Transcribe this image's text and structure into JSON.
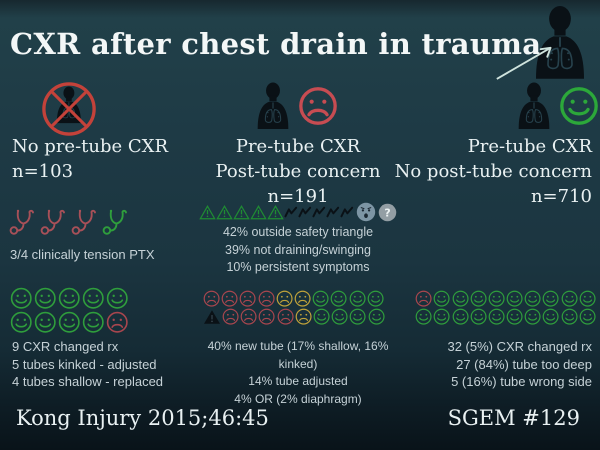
{
  "title": "CXR after chest drain in trauma",
  "colors": {
    "bg_top": "#214049",
    "bg_bottom": "#0a161d",
    "text": "#ebf2f3",
    "stat_text": "#c6d2d7",
    "red": "#c4423a",
    "red_bright": "#c74c52",
    "red_face": "#a8464e",
    "red_steth": "#a85058",
    "yellow": "#bfa23a",
    "green": "#2f9e3c",
    "green_bright": "#2ca83a",
    "green_dark": "#1f8c33",
    "dark": "#0a1116",
    "grey_face": "#7d95a4",
    "grey_q": "#939ea4",
    "arrow": "#cfe3dd"
  },
  "hero": {
    "icons": [
      "body"
    ],
    "arrow": [
      "arrow"
    ]
  },
  "columns": [
    {
      "header_icons": [
        "body-crossed"
      ],
      "header_lines": [
        "No pre-tube CXR"
      ],
      "n": "n=103",
      "mid_icons": [
        "steth-red",
        "steth-red",
        "steth-red",
        "steth-green"
      ],
      "mid_caption": "3/4 clinically tension PTX",
      "faces": [
        [
          "smile-green",
          "smile-green",
          "smile-green",
          "smile-green",
          "smile-green"
        ],
        [
          "smile-green",
          "smile-green",
          "smile-green",
          "smile-green",
          "frown-red"
        ]
      ],
      "stats": [
        "9 CXR changed rx",
        "5 tubes kinked - adjusted",
        "4 tubes shallow - replaced"
      ]
    },
    {
      "header_icons": [
        "body",
        "frown-circle-red"
      ],
      "header_lines": [
        "Pre-tube CXR",
        "Post-tube concern"
      ],
      "n": "n=191",
      "mid_icons": [
        "warn",
        "warn",
        "warn",
        "warn",
        "warn",
        "zigzag",
        "zigzag",
        "zigzag",
        "zigzag",
        "zigzag",
        "face-distress",
        "face-question"
      ],
      "mid_lines": [
        "42% outside safety triangle",
        "39% not draining/swinging",
        "10% persistent symptoms"
      ],
      "faces": [
        [
          "frown-red",
          "frown-red",
          "frown-red",
          "frown-red",
          "frown-yellow",
          "frown-yellow",
          "smile-green",
          "smile-green",
          "smile-green",
          "smile-green"
        ],
        [
          "tri-black",
          "frown-red",
          "frown-red",
          "frown-red",
          "frown-red",
          "frown-yellow",
          "smile-green",
          "smile-green",
          "smile-green",
          "smile-green"
        ]
      ],
      "stats": [
        "40% new tube (17% shallow, 16% kinked)",
        "14% tube adjusted",
        "4% OR (2% diaphragm)"
      ]
    },
    {
      "header_icons": [
        "body",
        "smile-circle-green"
      ],
      "header_lines": [
        "Pre-tube CXR",
        "No post-tube concern"
      ],
      "n": "n=710",
      "faces": [
        [
          "frown-red",
          "smile-green",
          "smile-green",
          "smile-green",
          "smile-green",
          "smile-green",
          "smile-green",
          "smile-green",
          "smile-green",
          "smile-green"
        ],
        [
          "smile-green",
          "smile-green",
          "smile-green",
          "smile-green",
          "smile-green",
          "smile-green",
          "smile-green",
          "smile-green",
          "smile-green",
          "smile-green"
        ]
      ],
      "stats": [
        "32 (5%) CXR changed rx",
        "27 (84%) tube too deep",
        "5 (16%) tube wrong side"
      ]
    }
  ],
  "footer": {
    "left": "Kong Injury 2015;46:45",
    "right": "SGEM #129"
  }
}
